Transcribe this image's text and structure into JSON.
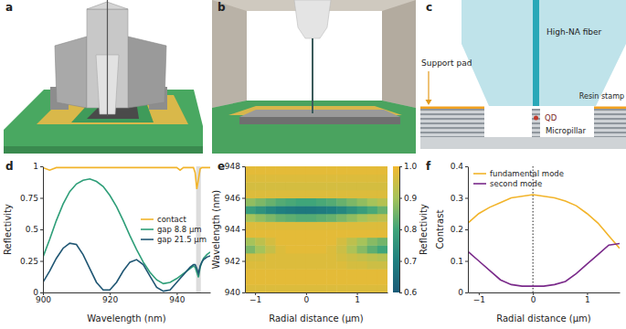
{
  "renders": [
    {
      "panel": "a"
    },
    {
      "panel": "b"
    }
  ],
  "schematic": {
    "panel": "c",
    "fiber": "High-NA fiber",
    "support_pad": "Support pad",
    "resin_stamp": "Resin stamp",
    "qd": "QD",
    "micropillar": "Micropillar"
  },
  "chart_data": [
    {
      "panel": "d",
      "type": "line",
      "x_label": "Wavelength (nm)",
      "y_label": "Reflectivity",
      "x": [
        900,
        902,
        904,
        906,
        908,
        910,
        912,
        914,
        916,
        918,
        920,
        922,
        924,
        926,
        928,
        930,
        932,
        934,
        936,
        938,
        940,
        941,
        942,
        943,
        944,
        945,
        945.5,
        946,
        946.5,
        947,
        947.5,
        948,
        949,
        950
      ],
      "series": [
        {
          "name": "contact",
          "color": "#f2b42a",
          "values": [
            0.99,
            0.97,
            0.99,
            0.99,
            0.99,
            0.99,
            0.99,
            0.99,
            0.99,
            0.99,
            0.99,
            0.99,
            0.99,
            0.99,
            0.99,
            0.99,
            0.99,
            0.99,
            0.99,
            0.99,
            0.99,
            0.97,
            0.99,
            0.99,
            0.99,
            0.99,
            0.95,
            0.82,
            0.9,
            0.98,
            0.99,
            0.99,
            0.99,
            0.99
          ]
        },
        {
          "name": "gap 8.8 μm",
          "color": "#2e9e78",
          "values": [
            0.28,
            0.42,
            0.57,
            0.7,
            0.8,
            0.86,
            0.89,
            0.9,
            0.88,
            0.84,
            0.77,
            0.68,
            0.57,
            0.45,
            0.34,
            0.24,
            0.16,
            0.1,
            0.07,
            0.08,
            0.11,
            0.13,
            0.15,
            0.17,
            0.19,
            0.21,
            0.2,
            0.16,
            0.12,
            0.2,
            0.24,
            0.27,
            0.3,
            0.32
          ]
        },
        {
          "name": "gap 21.5 μm",
          "color": "#1f5673",
          "values": [
            0.08,
            0.17,
            0.27,
            0.35,
            0.39,
            0.38,
            0.3,
            0.19,
            0.08,
            0.02,
            0.02,
            0.08,
            0.17,
            0.24,
            0.26,
            0.22,
            0.13,
            0.04,
            0.01,
            0.02,
            0.08,
            0.11,
            0.14,
            0.17,
            0.2,
            0.22,
            0.22,
            0.19,
            0.15,
            0.21,
            0.24,
            0.26,
            0.28,
            0.29
          ]
        }
      ],
      "highlight": [
        945.8,
        947.2
      ],
      "xlim": [
        900,
        950
      ],
      "ylim": [
        0,
        1
      ],
      "xticks": [
        900,
        920,
        940
      ],
      "yticks": [
        0,
        0.25,
        0.5,
        0.75,
        1
      ],
      "legend": "center right"
    },
    {
      "panel": "e",
      "type": "heatmap",
      "x_label": "Radial distance (μm)",
      "y_label": "Wavelength (nm)",
      "x_edges": [
        -1.2,
        -1,
        -0.8,
        -0.6,
        -0.4,
        -0.2,
        0,
        0.2,
        0.4,
        0.6,
        0.8,
        1,
        1.2,
        1.4,
        1.6
      ],
      "y_edges": [
        940,
        940.5,
        941,
        941.5,
        942,
        942.5,
        943,
        943.5,
        944,
        944.5,
        945,
        945.5,
        946,
        946.5,
        947,
        947.5,
        948
      ],
      "cells": [
        [
          0.97,
          0.97,
          0.97,
          0.97,
          0.97,
          0.97,
          0.97,
          0.97,
          0.97,
          0.97,
          0.97,
          0.97,
          0.97,
          0.97
        ],
        [
          0.98,
          0.98,
          0.98,
          0.98,
          0.98,
          0.98,
          0.98,
          0.98,
          0.98,
          0.98,
          0.98,
          0.98,
          0.98,
          0.98
        ],
        [
          0.98,
          0.98,
          0.98,
          0.98,
          0.98,
          0.98,
          0.98,
          0.98,
          0.98,
          0.98,
          0.98,
          0.98,
          0.98,
          0.98
        ],
        [
          0.97,
          0.97,
          0.97,
          0.97,
          0.97,
          0.97,
          0.97,
          0.97,
          0.97,
          0.97,
          0.96,
          0.96,
          0.95,
          0.95
        ],
        [
          0.96,
          0.96,
          0.97,
          0.97,
          0.97,
          0.97,
          0.97,
          0.97,
          0.97,
          0.96,
          0.95,
          0.94,
          0.93,
          0.92
        ],
        [
          0.86,
          0.9,
          0.94,
          0.97,
          0.98,
          0.98,
          0.98,
          0.98,
          0.97,
          0.95,
          0.91,
          0.87,
          0.83,
          0.8
        ],
        [
          0.9,
          0.93,
          0.96,
          0.98,
          0.98,
          0.98,
          0.98,
          0.98,
          0.98,
          0.96,
          0.93,
          0.9,
          0.87,
          0.85
        ],
        [
          0.98,
          0.98,
          0.98,
          0.98,
          0.98,
          0.98,
          0.98,
          0.98,
          0.98,
          0.98,
          0.98,
          0.98,
          0.98,
          0.98
        ],
        [
          0.97,
          0.97,
          0.97,
          0.97,
          0.97,
          0.97,
          0.97,
          0.97,
          0.97,
          0.97,
          0.97,
          0.97,
          0.97,
          0.97
        ],
        [
          0.9,
          0.88,
          0.86,
          0.84,
          0.83,
          0.82,
          0.82,
          0.83,
          0.84,
          0.86,
          0.88,
          0.9,
          0.92,
          0.93
        ],
        [
          0.78,
          0.75,
          0.72,
          0.7,
          0.69,
          0.68,
          0.68,
          0.69,
          0.7,
          0.72,
          0.75,
          0.78,
          0.81,
          0.84
        ],
        [
          0.88,
          0.86,
          0.84,
          0.82,
          0.81,
          0.8,
          0.8,
          0.81,
          0.82,
          0.84,
          0.86,
          0.88,
          0.9,
          0.92
        ],
        [
          0.97,
          0.97,
          0.97,
          0.97,
          0.97,
          0.97,
          0.97,
          0.97,
          0.97,
          0.97,
          0.97,
          0.97,
          0.97,
          0.97
        ],
        [
          0.96,
          0.96,
          0.96,
          0.96,
          0.96,
          0.96,
          0.96,
          0.96,
          0.96,
          0.96,
          0.96,
          0.96,
          0.96,
          0.96
        ],
        [
          0.97,
          0.97,
          0.97,
          0.97,
          0.97,
          0.97,
          0.97,
          0.97,
          0.97,
          0.97,
          0.97,
          0.97,
          0.97,
          0.97
        ],
        [
          0.98,
          0.98,
          0.98,
          0.98,
          0.98,
          0.98,
          0.98,
          0.98,
          0.98,
          0.98,
          0.98,
          0.98,
          0.98,
          0.98
        ]
      ],
      "xlim": [
        -1.2,
        1.6
      ],
      "ylim": [
        940,
        948
      ],
      "xticks": [
        {
          "value": -1,
          "label": "−1"
        },
        0,
        1
      ],
      "yticks": [
        940,
        942,
        944,
        946,
        948
      ],
      "zlim": [
        0.6,
        1
      ],
      "zticks": [
        0.6,
        0.7,
        0.8,
        0.9,
        {
          "value": 1,
          "label": "1.0"
        }
      ],
      "z_label": "Reflectivity"
    },
    {
      "panel": "f",
      "type": "line",
      "x_label": "Radial distance (μm)",
      "y_label": "Contrast",
      "x": [
        -1.2,
        -1,
        -0.8,
        -0.6,
        -0.4,
        -0.2,
        0,
        0.2,
        0.4,
        0.6,
        0.8,
        1,
        1.2,
        1.4,
        1.6
      ],
      "series": [
        {
          "name": "fundamental mode",
          "color": "#f2b42a",
          "values": [
            0.22,
            0.25,
            0.27,
            0.285,
            0.3,
            0.305,
            0.31,
            0.305,
            0.3,
            0.29,
            0.275,
            0.25,
            0.22,
            0.18,
            0.14
          ]
        },
        {
          "name": "second mode",
          "color": "#7a2a8a",
          "values": [
            0.13,
            0.1,
            0.07,
            0.04,
            0.025,
            0.02,
            0.02,
            0.02,
            0.025,
            0.035,
            0.06,
            0.09,
            0.12,
            0.15,
            0.155
          ]
        }
      ],
      "vline": 0,
      "xlim": [
        -1.2,
        1.6
      ],
      "ylim": [
        0,
        0.4
      ],
      "xticks": [
        {
          "value": -1,
          "label": "−1"
        },
        0,
        1
      ],
      "yticks": [
        0,
        0.1,
        0.2,
        0.3,
        0.4
      ],
      "legend": "upper left"
    }
  ]
}
